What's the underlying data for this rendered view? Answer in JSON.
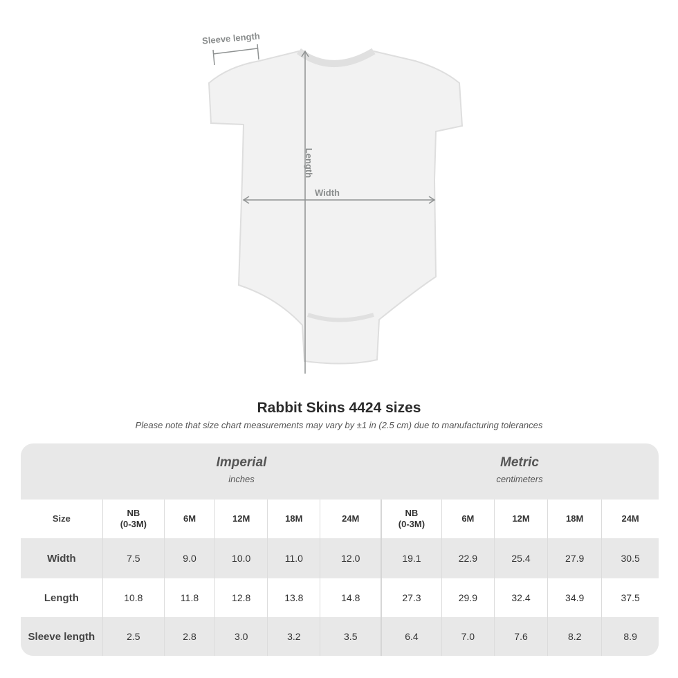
{
  "diagram": {
    "sleeve_label": "Sleeve length",
    "length_label": "Length",
    "width_label": "Width"
  },
  "title": "Rabbit Skins 4424 sizes",
  "note": "Please note that size chart measurements may vary by ±1 in (2.5 cm) due to manufacturing tolerances",
  "imperial": {
    "title": "Imperial",
    "unit": "inches"
  },
  "metric": {
    "title": "Metric",
    "unit": "centimeters"
  },
  "size_label": "Size",
  "sizes": [
    "NB\n(0-3M)",
    "6M",
    "12M",
    "18M",
    "24M"
  ],
  "rows": [
    {
      "label": "Width",
      "imperial": [
        "7.5",
        "9.0",
        "10.0",
        "11.0",
        "12.0"
      ],
      "metric": [
        "19.1",
        "22.9",
        "25.4",
        "27.9",
        "30.5"
      ]
    },
    {
      "label": "Length",
      "imperial": [
        "10.8",
        "11.8",
        "12.8",
        "13.8",
        "14.8"
      ],
      "metric": [
        "27.3",
        "29.9",
        "32.4",
        "34.9",
        "37.5"
      ]
    },
    {
      "label": "Sleeve length",
      "imperial": [
        "2.5",
        "2.8",
        "3.0",
        "3.2",
        "3.5"
      ],
      "metric": [
        "6.4",
        "7.0",
        "7.6",
        "8.2",
        "8.9"
      ]
    }
  ]
}
